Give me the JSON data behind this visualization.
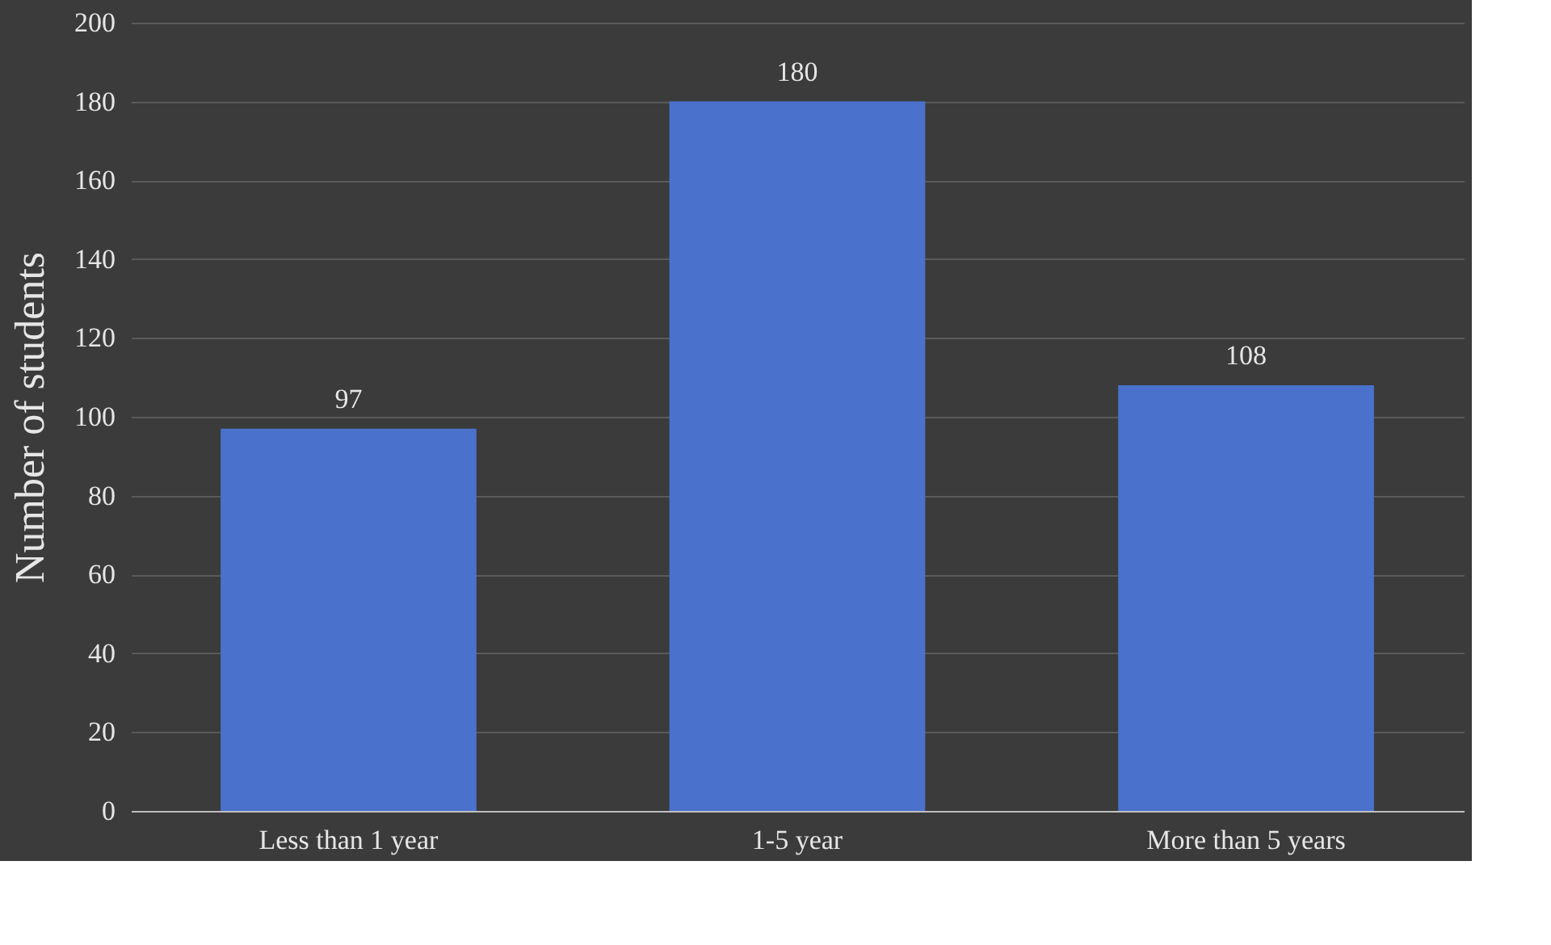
{
  "chart_data": {
    "type": "bar",
    "ylabel": "Number of students",
    "categories": [
      "Less than 1 year",
      "1-5 year",
      "More than 5 years"
    ],
    "values": [
      97,
      180,
      108
    ],
    "color": "#4a72cc",
    "ylim": [
      0,
      200
    ],
    "yticks": [
      0,
      20,
      40,
      60,
      80,
      100,
      120,
      140,
      160,
      180,
      200
    ],
    "grid": "y",
    "data_labels": true
  }
}
